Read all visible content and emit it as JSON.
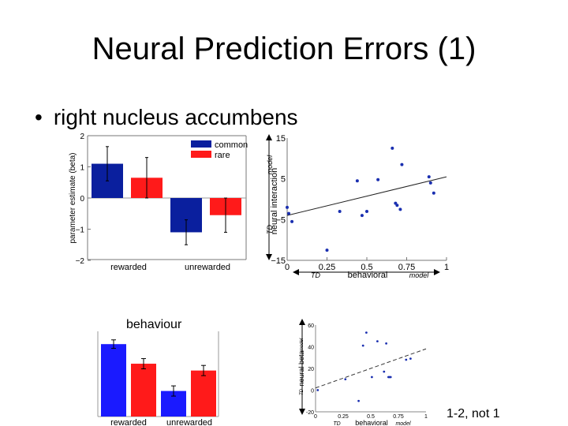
{
  "slide": {
    "title": "Neural Prediction Errors (1)",
    "bullet": "right nucleus accumbens",
    "behaviour_label": "behaviour",
    "footnote": "1-2, not 1"
  },
  "colors": {
    "common": "#0a1f9e",
    "rare": "#ff1a1a",
    "bright_blue": "#1a1aff",
    "point": "#1a2fb0"
  },
  "chart_data": [
    {
      "type": "bar",
      "categories": [
        "rewarded",
        "unrewarded"
      ],
      "series": [
        {
          "name": "common",
          "values": [
            1.1,
            -1.1
          ],
          "errors": [
            0.55,
            0.4
          ]
        },
        {
          "name": "rare",
          "values": [
            0.65,
            -0.55
          ],
          "errors": [
            0.65,
            0.55
          ]
        }
      ],
      "ylabel": "parameter estimate (beta)",
      "ylim": [
        -2,
        2
      ],
      "yticks": [
        "2",
        "1",
        "0",
        "−1",
        "−2"
      ],
      "legend": "top-right"
    },
    {
      "type": "scatter",
      "xlabel": "behavioral",
      "xlabel_left": "TD",
      "xlabel_right": "model",
      "ylabel": "neural interaction",
      "ylabel_top": "model",
      "ylabel_bottom": "TD",
      "xlim": [
        0,
        1
      ],
      "ylim": [
        -15,
        15
      ],
      "xticks": [
        "0",
        "0.25",
        "0.5",
        "0.75",
        "1"
      ],
      "yticks": [
        "15",
        "5",
        "−5",
        "−15"
      ],
      "x": [
        0.0,
        0.01,
        0.03,
        0.25,
        0.33,
        0.44,
        0.47,
        0.5,
        0.57,
        0.66,
        0.68,
        0.69,
        0.71,
        0.72,
        0.89,
        0.9,
        0.92
      ],
      "y": [
        -2.0,
        -3.5,
        -5.5,
        -12.5,
        -3.0,
        4.5,
        -4.0,
        -3.0,
        4.8,
        12.5,
        -1.0,
        -1.5,
        -2.5,
        8.5,
        5.5,
        4.0,
        1.5
      ],
      "fit_line": {
        "x": [
          0.0,
          1.0
        ],
        "y": [
          -4.0,
          5.5
        ]
      }
    },
    {
      "type": "bar",
      "categories": [
        "rewarded",
        "unrewarded"
      ],
      "series": [
        {
          "name": "common",
          "values": [
            0.85,
            0.3
          ],
          "errors": [
            0.05,
            0.06
          ]
        },
        {
          "name": "rare",
          "values": [
            0.62,
            0.54
          ],
          "errors": [
            0.06,
            0.06
          ]
        }
      ],
      "ylim": [
        0,
        1
      ]
    },
    {
      "type": "scatter",
      "xlabel": "behavioral",
      "xlabel_left": "TD",
      "xlabel_right": "model",
      "ylabel": "neural beta",
      "ylabel_top": "model",
      "ylabel_bottom": "TD",
      "xlim": [
        0,
        1
      ],
      "ylim": [
        -20,
        60
      ],
      "xticks": [
        "0",
        "0.25",
        "0.5",
        "0.75",
        "1"
      ],
      "yticks": [
        "60",
        "40",
        "20",
        "0",
        "-20"
      ],
      "x": [
        0.02,
        0.27,
        0.39,
        0.43,
        0.46,
        0.51,
        0.56,
        0.62,
        0.64,
        0.66,
        0.67,
        0.68,
        0.82,
        0.86
      ],
      "y": [
        0,
        10,
        -10,
        41,
        53,
        12,
        45,
        17,
        43,
        12,
        12,
        12,
        28,
        29
      ],
      "fit_line": {
        "x": [
          0.0,
          1.0
        ],
        "y": [
          2.0,
          38.0
        ]
      }
    }
  ]
}
